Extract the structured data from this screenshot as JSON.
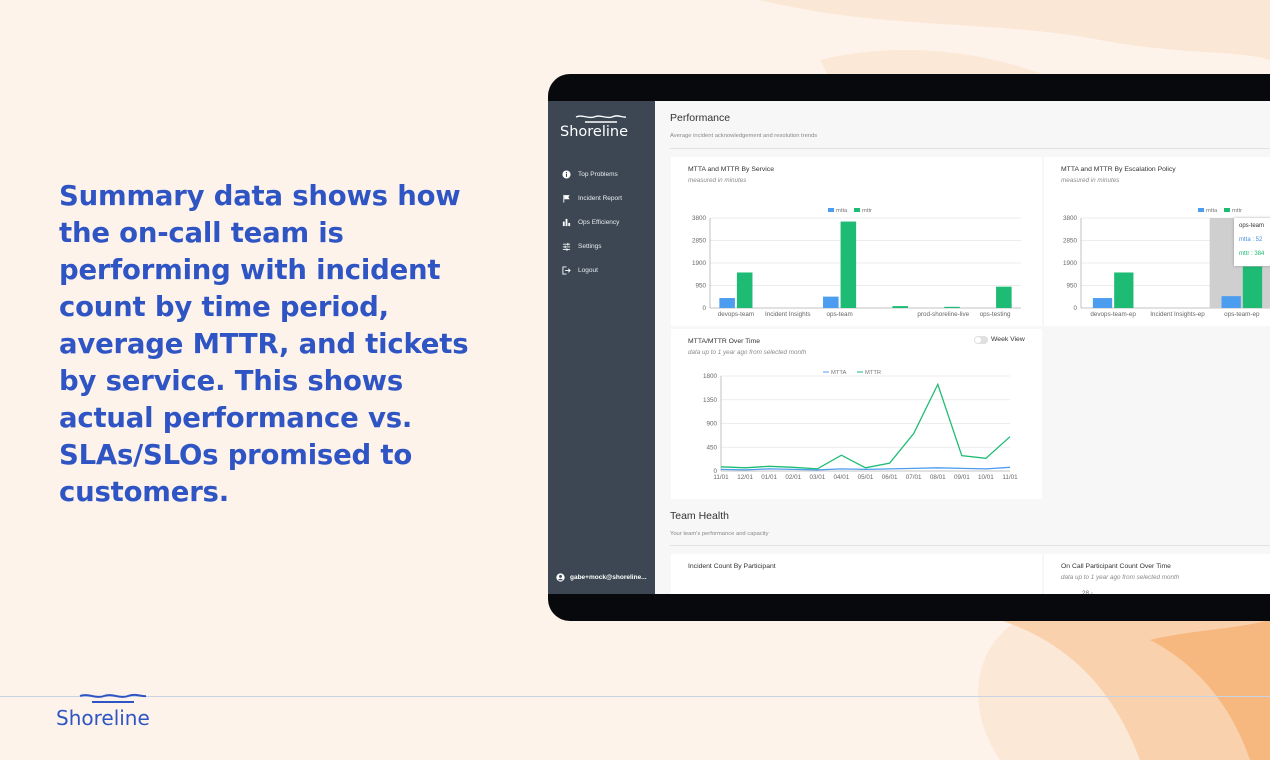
{
  "colors": {
    "brand": "#2f55c4",
    "mtta": "#4c9cf0",
    "mttr": "#1dbb74",
    "sidebar": "#3c4753"
  },
  "headline": "Summary data shows how the on-call team is performing with incident count by time period, average MTTR, and tickets by service. This shows actual performance vs. SLAs/SLOs promised to customers.",
  "brand": {
    "name": "Shoreline",
    "logo_icon": "wave-icon"
  },
  "app": {
    "brand": "Shoreline",
    "nav": [
      {
        "label": "Top Problems",
        "icon": "info-icon"
      },
      {
        "label": "Incident Report",
        "icon": "flag-icon"
      },
      {
        "label": "Ops Efficiency",
        "icon": "bar-chart-icon"
      },
      {
        "label": "Settings",
        "icon": "sliders-icon"
      },
      {
        "label": "Logout",
        "icon": "logout-icon"
      }
    ],
    "user": "gabe+mock@shoreline..."
  },
  "performance": {
    "title": "Performance",
    "subtitle": "Average incident acknowledgement and resolution trends"
  },
  "team_health": {
    "title": "Team Health",
    "subtitle": "Your team's performance and capacity"
  },
  "cards": {
    "by_service": {
      "title": "MTTA and MTTR By Service",
      "subtitle": "measured in minutes"
    },
    "by_policy": {
      "title": "MTTA and MTTR By Escalation Policy",
      "subtitle": "measured in minutes"
    },
    "over_time": {
      "title": "MTTA/MTTR Over Time",
      "subtitle": "data up to 1 year ago from selected month",
      "toggle_label": "Week View"
    },
    "incident_count": {
      "title": "Incident Count By Participant"
    },
    "on_call": {
      "title": "On Call Participant Count Over Time",
      "subtitle": "data up to 1 year ago from selected month",
      "partial_tick": "28"
    }
  },
  "tooltip": {
    "title": "ops-team",
    "mtta": "mtta : 52",
    "mttr": "mttr : 384"
  },
  "chart_data": [
    {
      "type": "bar",
      "title": "MTTA and MTTR By Service",
      "subtitle": "measured in minutes",
      "categories": [
        "devops-team",
        "Incident Insights",
        "ops-team",
        "",
        "prod-shoreline-live",
        "ops-testing"
      ],
      "series": [
        {
          "name": "mtta",
          "values": [
            420,
            0,
            480,
            0,
            0,
            0
          ]
        },
        {
          "name": "mttr",
          "values": [
            1500,
            0,
            3650,
            80,
            50,
            900
          ]
        }
      ],
      "yticks": [
        "0",
        "950",
        "1900",
        "2850",
        "3800"
      ],
      "ylim": [
        0,
        3800
      ],
      "legend": "top"
    },
    {
      "type": "bar",
      "title": "MTTA and MTTR By Escalation Policy",
      "subtitle": "measured in minutes",
      "categories": [
        "devops-team-ep",
        "Incident Insights-ep",
        "ops-team-ep"
      ],
      "series": [
        {
          "name": "mtta",
          "values": [
            420,
            0,
            500
          ]
        },
        {
          "name": "mttr",
          "values": [
            1500,
            0,
            1750
          ]
        }
      ],
      "yticks": [
        "0",
        "950",
        "1900",
        "2850",
        "3800"
      ],
      "ylim": [
        0,
        3800
      ],
      "legend": "top"
    },
    {
      "type": "line",
      "title": "MTTA/MTTR Over Time",
      "subtitle": "data up to 1 year ago from selected month",
      "x": [
        "11/01",
        "12/01",
        "01/01",
        "02/01",
        "03/01",
        "04/01",
        "05/01",
        "06/01",
        "07/01",
        "08/01",
        "09/01",
        "10/01",
        "11/01"
      ],
      "series": [
        {
          "name": "MTTA",
          "values": [
            30,
            20,
            40,
            30,
            20,
            40,
            30,
            40,
            50,
            60,
            50,
            40,
            70
          ]
        },
        {
          "name": "MTTR",
          "values": [
            80,
            60,
            90,
            70,
            40,
            300,
            60,
            150,
            710,
            1640,
            290,
            240,
            650
          ]
        }
      ],
      "yticks": [
        "0",
        "450",
        "900",
        "1350",
        "1800"
      ],
      "ylim": [
        0,
        1800
      ],
      "legend": "top"
    }
  ]
}
